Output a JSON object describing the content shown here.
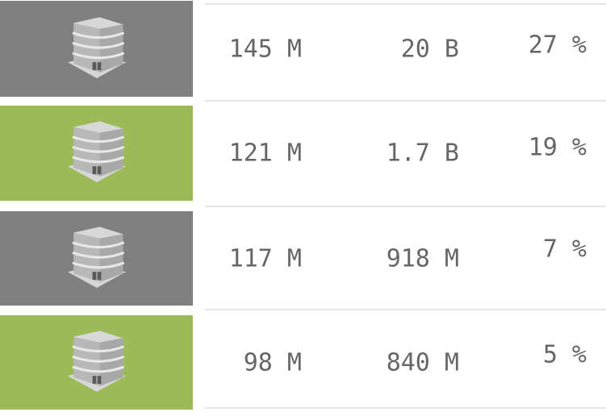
{
  "rows": [
    {
      "tile_color": "#808080",
      "icon": "building-icon",
      "col1": "145 M",
      "col2": "20 B",
      "col3": "27 %"
    },
    {
      "tile_color": "#9cbb58",
      "icon": "building-icon",
      "col1": "121 M",
      "col2": "1.7 B",
      "col3": "19 %"
    },
    {
      "tile_color": "#808080",
      "icon": "building-icon",
      "col1": "117 M",
      "col2": "918 M",
      "col3": "7 %"
    },
    {
      "tile_color": "#9cbb58",
      "icon": "building-icon",
      "col1": "98 M",
      "col2": "840 M",
      "col3": "5 %"
    }
  ]
}
